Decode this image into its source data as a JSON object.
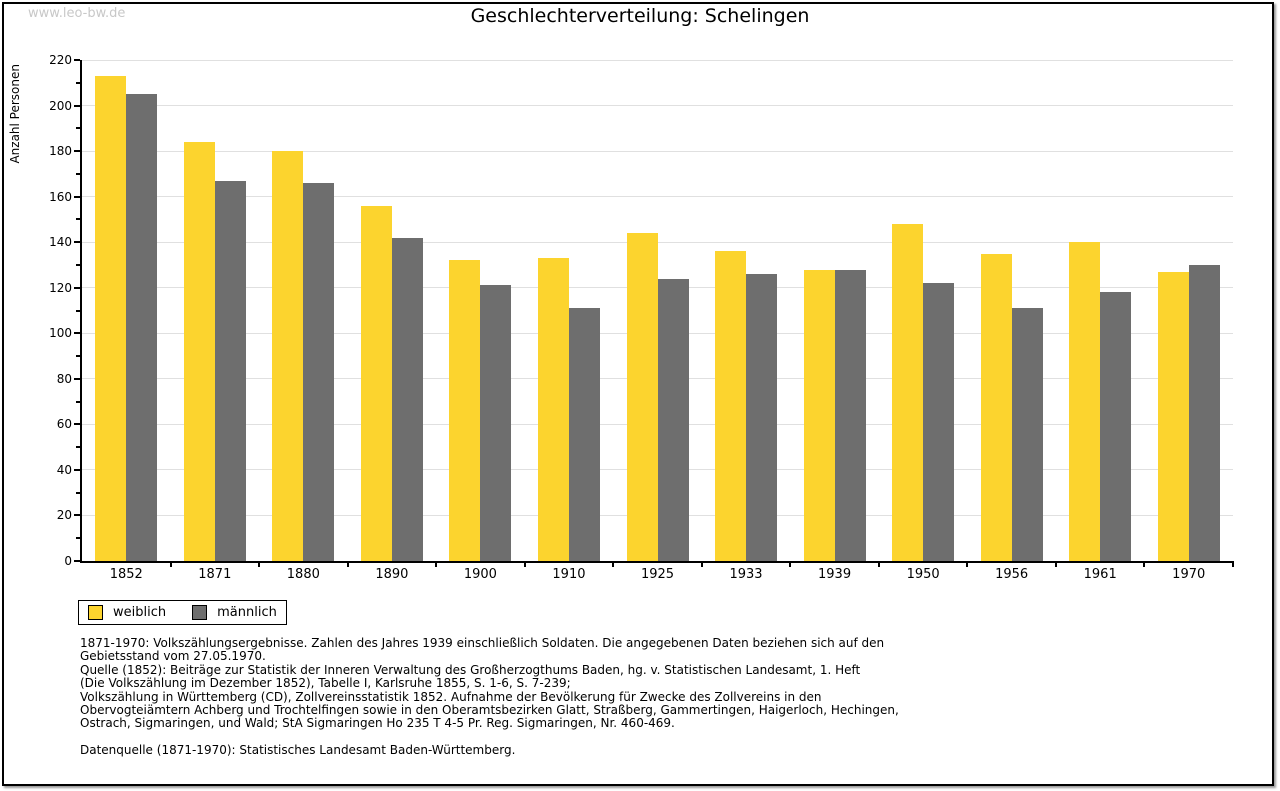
{
  "page": {
    "watermark": "www.leo-bw.de"
  },
  "chart_data": {
    "type": "bar",
    "title": "Geschlechterverteilung: Schelingen",
    "xlabel": "",
    "ylabel": "Anzahl Personen",
    "ylim": [
      0,
      220
    ],
    "ytick_step": 20,
    "grid": true,
    "legend_position": "bottom-left",
    "categories": [
      "1852",
      "1871",
      "1880",
      "1890",
      "1900",
      "1910",
      "1925",
      "1933",
      "1939",
      "1950",
      "1956",
      "1961",
      "1970"
    ],
    "series": [
      {
        "name": "weiblich",
        "color": "#FCD42E",
        "values": [
          213,
          184,
          180,
          156,
          132,
          133,
          144,
          136,
          128,
          148,
          135,
          140,
          127
        ]
      },
      {
        "name": "männlich",
        "color": "#6E6E6E",
        "values": [
          205,
          167,
          166,
          142,
          121,
          111,
          124,
          126,
          128,
          122,
          111,
          118,
          130
        ]
      }
    ]
  },
  "footer": {
    "lines": [
      "1871-1970: Volkszählungsergebnisse. Zahlen des Jahres 1939 einschließlich Soldaten. Die angegebenen Daten beziehen sich auf den",
      "Gebietsstand vom 27.05.1970.",
      "Quelle (1852): Beiträge zur Statistik der Inneren Verwaltung des Großherzogthums Baden, hg. v. Statistischen Landesamt, 1. Heft",
      "(Die Volkszählung im Dezember 1852), Tabelle I, Karlsruhe 1855, S. 1-6, S. 7-239;",
      "Volkszählung in Württemberg (CD), Zollvereinsstatistik 1852. Aufnahme der Bevölkerung für Zwecke des Zollvereins in den",
      "Obervogteiämtern Achberg und Trochtelfingen sowie in den Oberamtsbezirken Glatt, Straßberg, Gammertingen, Haigerloch, Hechingen,",
      "Ostrach, Sigmaringen, und Wald; StA Sigmaringen Ho 235 T 4-5 Pr. Reg. Sigmaringen, Nr. 460-469.",
      "",
      "Datenquelle (1871-1970): Statistisches Landesamt Baden-Württemberg."
    ]
  },
  "colors": {
    "grid": "#E0E0E0",
    "axis": "#000000",
    "watermark": "#C8C8C8"
  }
}
